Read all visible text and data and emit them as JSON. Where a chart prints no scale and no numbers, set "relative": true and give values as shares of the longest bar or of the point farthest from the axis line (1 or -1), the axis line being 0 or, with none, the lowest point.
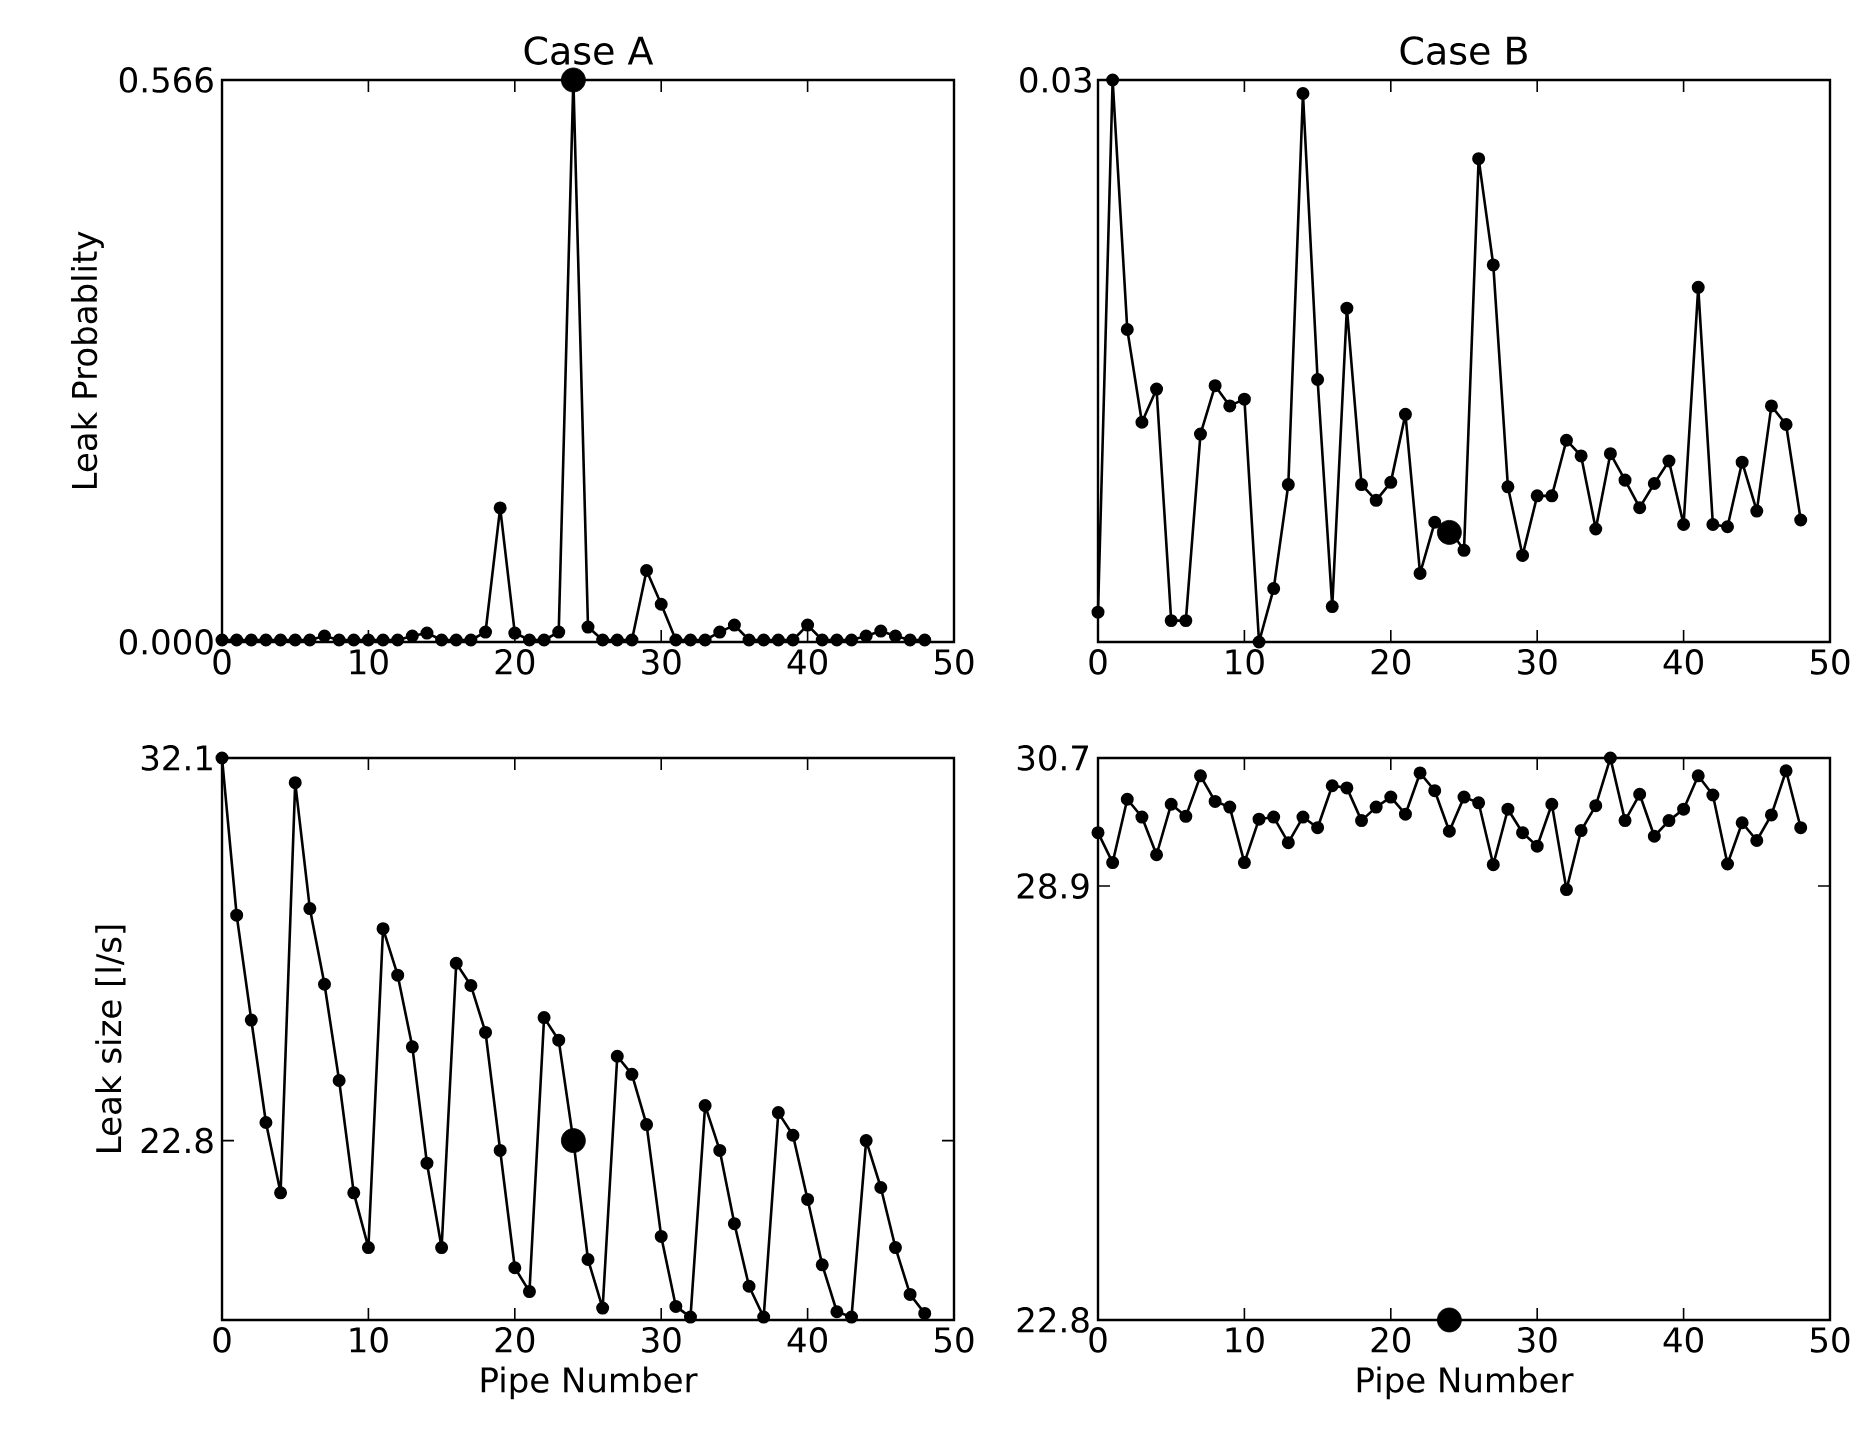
{
  "chart_data": [
    {
      "type": "line",
      "title": "Case A",
      "ylabel": "Leak Probablity",
      "marker": "circle",
      "line_style": "solid",
      "x": [
        0,
        1,
        2,
        3,
        4,
        5,
        6,
        7,
        8,
        9,
        10,
        11,
        12,
        13,
        14,
        15,
        16,
        17,
        18,
        19,
        20,
        21,
        22,
        23,
        24,
        25,
        26,
        27,
        28,
        29,
        30,
        31,
        32,
        33,
        34,
        35,
        36,
        37,
        38,
        39,
        40,
        41,
        42,
        43,
        44,
        45,
        46,
        47,
        48
      ],
      "xlim": [
        0,
        50
      ],
      "xticks": [
        0,
        10,
        20,
        30,
        40,
        50
      ],
      "ylim": [
        0,
        0.566
      ],
      "yticks": [
        {
          "value": 0,
          "label": "0.000"
        },
        0.566
      ],
      "series": [
        {
          "color": "#000000",
          "values": [
            0.002,
            0.002,
            0.002,
            0.002,
            0.002,
            0.002,
            0.002,
            0.006,
            0.002,
            0.002,
            0.002,
            0.002,
            0.002,
            0.006,
            0.009,
            0.002,
            0.002,
            0.002,
            0.01,
            0.135,
            0.009,
            0.002,
            0.002,
            0.01,
            0.566,
            0.015,
            0.002,
            0.002,
            0.002,
            0.072,
            0.038,
            0.002,
            0.002,
            0.002,
            0.01,
            0.017,
            0.002,
            0.002,
            0.002,
            0.002,
            0.017,
            0.002,
            0.002,
            0.002,
            0.006,
            0.011,
            0.006,
            0.002,
            0.002
          ]
        },
        {
          "type": "scatter",
          "color": "#000000",
          "values": [
            null,
            null,
            null,
            null,
            null,
            null,
            null,
            null,
            null,
            null,
            null,
            null,
            null,
            null,
            null,
            null,
            null,
            null,
            null,
            null,
            null,
            null,
            null,
            null,
            0.566,
            null,
            null,
            null,
            null,
            null,
            null,
            null,
            null,
            null,
            null,
            null,
            null,
            null,
            null,
            null,
            null,
            null,
            null,
            null,
            null,
            null,
            null,
            null,
            null
          ]
        }
      ]
    },
    {
      "type": "line",
      "title": "Case B",
      "relative": true,
      "marker": "circle",
      "line_style": "solid",
      "annotations": [
        "0.03"
      ],
      "x": [
        0,
        1,
        2,
        3,
        4,
        5,
        6,
        7,
        8,
        9,
        10,
        11,
        12,
        13,
        14,
        15,
        16,
        17,
        18,
        19,
        20,
        21,
        22,
        23,
        24,
        25,
        26,
        27,
        28,
        29,
        30,
        31,
        32,
        33,
        34,
        35,
        36,
        37,
        38,
        39,
        40,
        41,
        42,
        43,
        44,
        45,
        46,
        47,
        48
      ],
      "xlim": [
        0,
        50
      ],
      "xticks": [
        0,
        10,
        20,
        30,
        40,
        50
      ],
      "series": [
        {
          "color": "#000000",
          "values": [
            0.053,
            1.0,
            0.556,
            0.391,
            0.45,
            0.038,
            0.038,
            0.37,
            0.456,
            0.42,
            0.432,
            0.0,
            0.095,
            0.28,
            0.976,
            0.467,
            0.063,
            0.594,
            0.28,
            0.252,
            0.284,
            0.405,
            0.122,
            0.213,
            0.201,
            0.163,
            0.86,
            0.671,
            0.276,
            0.154,
            0.26,
            0.26,
            0.359,
            0.331,
            0.201,
            0.335,
            0.288,
            0.239,
            0.282,
            0.322,
            0.209,
            0.631,
            0.209,
            0.205,
            0.32,
            0.233,
            0.42,
            0.387,
            0.217
          ]
        },
        {
          "type": "scatter",
          "color": "#000000",
          "values": [
            null,
            null,
            null,
            null,
            null,
            null,
            null,
            null,
            null,
            null,
            null,
            null,
            null,
            null,
            null,
            null,
            null,
            null,
            null,
            null,
            null,
            null,
            null,
            null,
            0.195,
            null,
            null,
            null,
            null,
            null,
            null,
            null,
            null,
            null,
            null,
            null,
            null,
            null,
            null,
            null,
            null,
            null,
            null,
            null,
            null,
            null,
            null,
            null,
            null
          ]
        }
      ]
    },
    {
      "type": "line",
      "xlabel": "Pipe Number",
      "ylabel": "Leak size [l/s]",
      "marker": "circle",
      "line_style": "solid",
      "x": [
        0,
        1,
        2,
        3,
        4,
        5,
        6,
        7,
        8,
        9,
        10,
        11,
        12,
        13,
        14,
        15,
        16,
        17,
        18,
        19,
        20,
        21,
        22,
        23,
        24,
        25,
        26,
        27,
        28,
        29,
        30,
        31,
        32,
        33,
        34,
        35,
        36,
        37,
        38,
        39,
        40,
        41,
        42,
        43,
        44,
        45,
        46,
        47,
        48
      ],
      "xlim": [
        0,
        50
      ],
      "xticks": [
        0,
        10,
        20,
        30,
        40,
        50
      ],
      "ylim": [
        18.44,
        32.1
      ],
      "yticks": [
        22.8,
        32.1
      ],
      "series": [
        {
          "color": "#000000",
          "values": [
            32.1,
            28.28,
            25.73,
            23.24,
            21.53,
            31.5,
            28.44,
            26.6,
            24.26,
            21.53,
            20.2,
            27.95,
            26.82,
            25.08,
            22.25,
            20.2,
            27.11,
            26.57,
            25.43,
            22.56,
            19.71,
            19.13,
            25.79,
            25.24,
            22.8,
            19.91,
            18.73,
            24.85,
            24.41,
            23.19,
            20.47,
            18.77,
            18.51,
            23.65,
            22.56,
            20.78,
            19.26,
            18.51,
            23.48,
            22.93,
            21.37,
            19.78,
            18.64,
            18.51,
            22.8,
            21.66,
            20.2,
            19.06,
            18.6
          ]
        },
        {
          "type": "scatter",
          "color": "#000000",
          "values": [
            null,
            null,
            null,
            null,
            null,
            null,
            null,
            null,
            null,
            null,
            null,
            null,
            null,
            null,
            null,
            null,
            null,
            null,
            null,
            null,
            null,
            null,
            null,
            null,
            22.8,
            null,
            null,
            null,
            null,
            null,
            null,
            null,
            null,
            null,
            null,
            null,
            null,
            null,
            null,
            null,
            null,
            null,
            null,
            null,
            null,
            null,
            null,
            null,
            null
          ]
        }
      ]
    },
    {
      "type": "line",
      "xlabel": "Pipe Number",
      "marker": "circle",
      "line_style": "solid",
      "x": [
        0,
        1,
        2,
        3,
        4,
        5,
        6,
        7,
        8,
        9,
        10,
        11,
        12,
        13,
        14,
        15,
        16,
        17,
        18,
        19,
        20,
        21,
        22,
        23,
        24,
        25,
        26,
        27,
        28,
        29,
        30,
        31,
        32,
        33,
        34,
        35,
        36,
        37,
        38,
        39,
        40,
        41,
        42,
        43,
        44,
        45,
        46,
        47,
        48
      ],
      "xlim": [
        0,
        50
      ],
      "xticks": [
        0,
        10,
        20,
        30,
        40,
        50
      ],
      "ylim": [
        22.8,
        30.7
      ],
      "yticks": [
        22.8,
        28.9,
        30.7
      ],
      "series": [
        {
          "color": "#000000",
          "values": [
            29.65,
            29.23,
            30.12,
            29.87,
            29.34,
            30.05,
            29.88,
            30.45,
            30.09,
            30.01,
            29.23,
            29.84,
            29.87,
            29.51,
            29.87,
            29.72,
            30.31,
            30.28,
            29.82,
            30.01,
            30.15,
            29.91,
            30.49,
            30.24,
            29.67,
            30.15,
            30.07,
            29.2,
            29.98,
            29.65,
            29.46,
            30.05,
            28.85,
            29.68,
            30.03,
            30.7,
            29.82,
            30.19,
            29.6,
            29.82,
            29.98,
            30.45,
            30.18,
            29.21,
            29.79,
            29.54,
            29.9,
            30.52,
            29.72
          ]
        },
        {
          "type": "scatter",
          "color": "#000000",
          "values": [
            null,
            null,
            null,
            null,
            null,
            null,
            null,
            null,
            null,
            null,
            null,
            null,
            null,
            null,
            null,
            null,
            null,
            null,
            null,
            null,
            null,
            null,
            null,
            null,
            22.8,
            null,
            null,
            null,
            null,
            null,
            null,
            null,
            null,
            null,
            null,
            null,
            null,
            null,
            null,
            null,
            null,
            null,
            null,
            null,
            null,
            null,
            null,
            null,
            null
          ]
        }
      ]
    }
  ]
}
